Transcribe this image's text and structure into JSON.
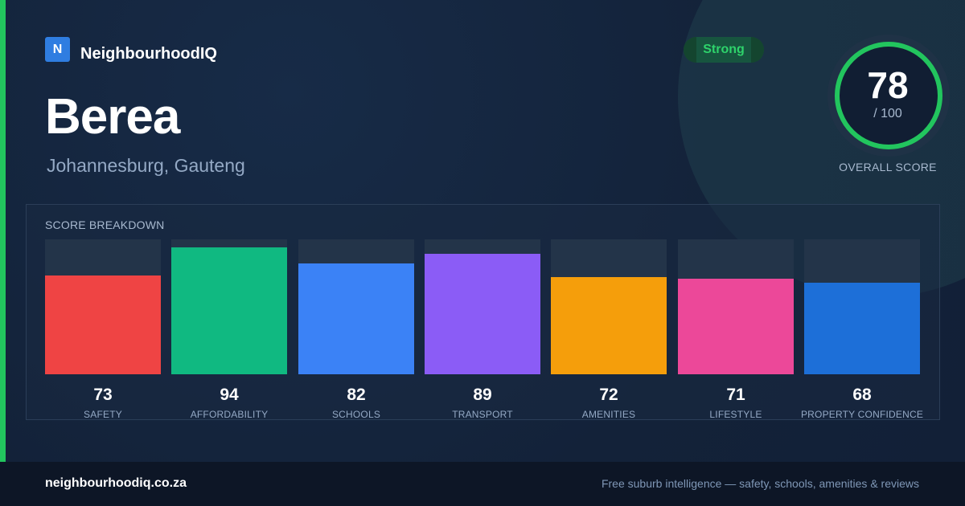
{
  "brand": {
    "logo_letter": "N",
    "name": "NeighbourhoodIQ"
  },
  "suburb": {
    "name": "Berea",
    "location": "Johannesburg, Gauteng"
  },
  "rating": {
    "badge": "Strong",
    "score": "78",
    "max": "/ 100",
    "label": "OVERALL SCORE",
    "score_fraction": 0.78,
    "ring_color": "#22c55e"
  },
  "breakdown": {
    "title": "SCORE BREAKDOWN",
    "items": [
      {
        "label": "SAFETY",
        "value": "73",
        "score": 73,
        "color": "#ef4444"
      },
      {
        "label": "AFFORDABILITY",
        "value": "94",
        "score": 94,
        "color": "#10b981"
      },
      {
        "label": "SCHOOLS",
        "value": "82",
        "score": 82,
        "color": "#3b82f6"
      },
      {
        "label": "TRANSPORT",
        "value": "89",
        "score": 89,
        "color": "#8b5cf6"
      },
      {
        "label": "AMENITIES",
        "value": "72",
        "score": 72,
        "color": "#f59e0b"
      },
      {
        "label": "LIFESTYLE",
        "value": "71",
        "score": 71,
        "color": "#ec4899"
      },
      {
        "label": "PROPERTY CONFIDENCE",
        "value": "68",
        "score": 68,
        "color": "#1d6fd8"
      }
    ]
  },
  "footer": {
    "url": "neighbourhoodiq.co.za",
    "tagline": "Free suburb intelligence — safety, schools, amenities & reviews"
  },
  "colors": {
    "accent": "#22c55e",
    "background": "#13223a",
    "footer": "#0d1626"
  }
}
